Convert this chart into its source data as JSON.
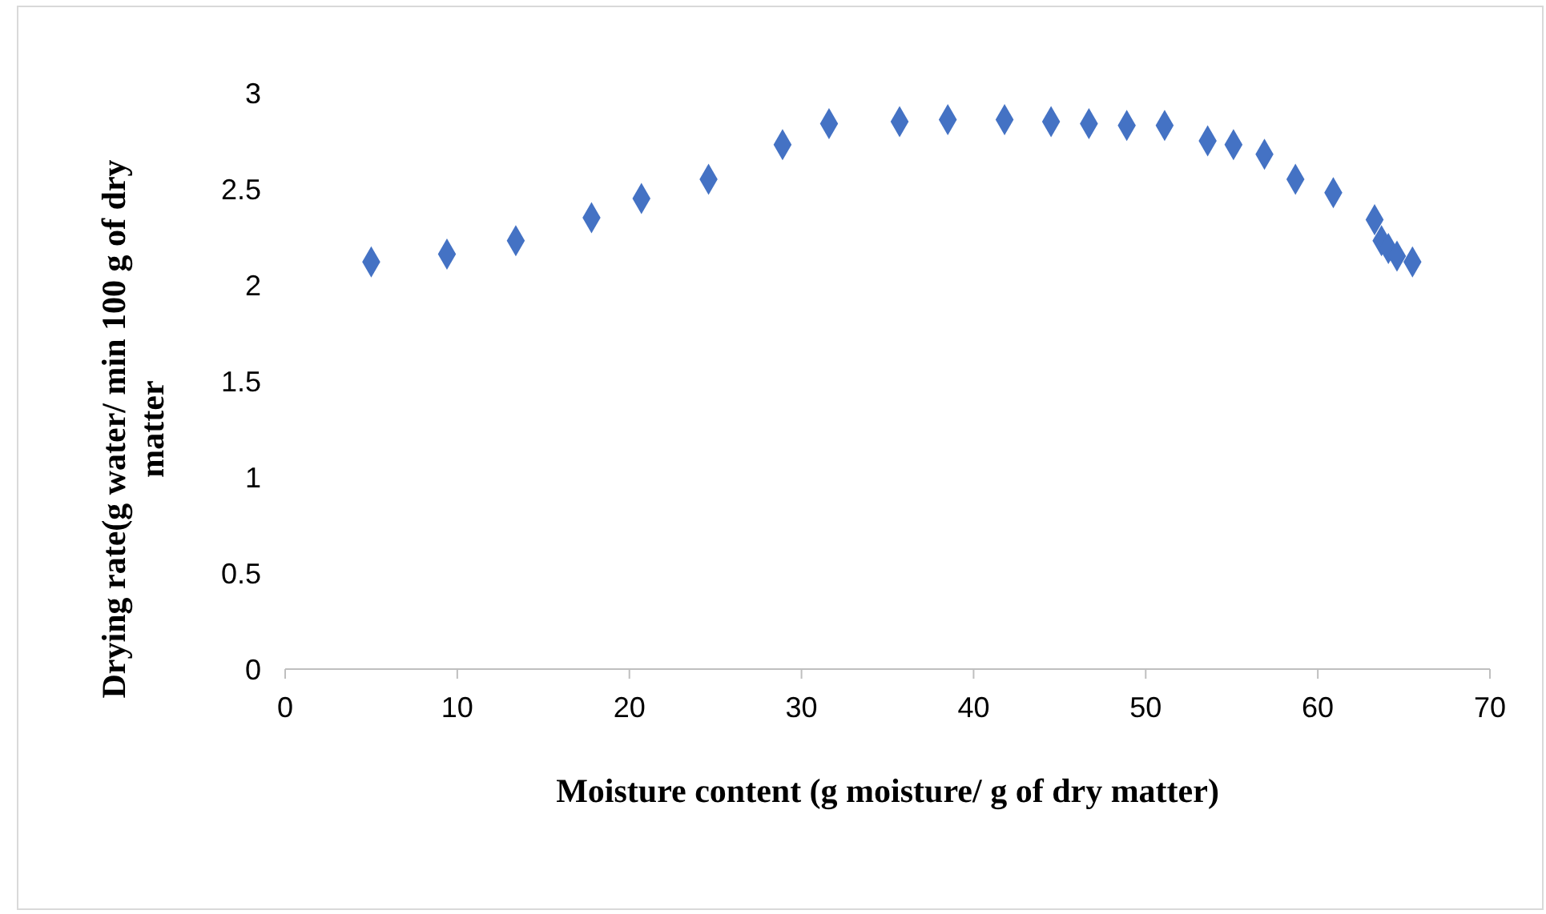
{
  "chart_data": {
    "type": "scatter",
    "xlabel": "Moisture content (g moisture/ g of dry matter)",
    "ylabel": "Drying rate(g water/ min 100 g of dry matter",
    "marker": "diamond",
    "grid": false,
    "x": [
      5.0,
      9.4,
      13.4,
      17.8,
      20.7,
      24.6,
      28.9,
      31.6,
      35.7,
      38.5,
      41.8,
      44.5,
      46.7,
      48.9,
      51.1,
      53.6,
      55.1,
      56.9,
      58.7,
      60.9,
      63.3,
      63.7,
      64.1,
      64.6,
      65.5
    ],
    "series": [
      {
        "color": "#4472c4",
        "values": [
          2.12,
          2.16,
          2.23,
          2.35,
          2.45,
          2.55,
          2.73,
          2.84,
          2.85,
          2.86,
          2.86,
          2.85,
          2.84,
          2.83,
          2.83,
          2.75,
          2.73,
          2.68,
          2.55,
          2.48,
          2.34,
          2.23,
          2.19,
          2.15,
          2.12
        ]
      }
    ],
    "xlim": [
      0,
      70
    ],
    "xticks": [
      0,
      10,
      20,
      30,
      40,
      50,
      60,
      70
    ],
    "ylim": [
      0,
      3
    ],
    "yticks": [
      0,
      0.5,
      1,
      1.5,
      2,
      2.5,
      3
    ]
  }
}
